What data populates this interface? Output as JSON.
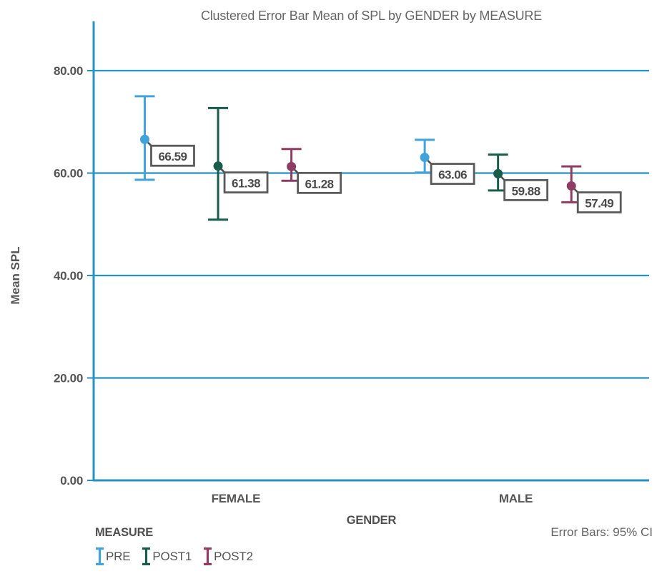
{
  "chart_data": {
    "type": "errorbar",
    "title": "Clustered Error Bar Mean of SPL by GENDER by MEASURE",
    "xlabel": "GENDER",
    "ylabel": "Mean SPL",
    "legend_title": "MEASURE",
    "footnote": "Error Bars: 95% CI",
    "error_bars": "95% CI",
    "grid": true,
    "legend_position": "bottom-left",
    "ylim": [
      0,
      89.6
    ],
    "yticks": [
      {
        "value": 0,
        "label": "0.00"
      },
      {
        "value": 20,
        "label": "20.00"
      },
      {
        "value": 40,
        "label": "40.00"
      },
      {
        "value": 60,
        "label": "60.00"
      },
      {
        "value": 80,
        "label": "80.00"
      }
    ],
    "categories": [
      "FEMALE",
      "MALE"
    ],
    "series": [
      {
        "name": "PRE",
        "color": "#41a3da",
        "points": [
          {
            "category": "FEMALE",
            "mean": 66.59,
            "label": "66.59",
            "ci_low": 58.7,
            "ci_high": 75.0
          },
          {
            "category": "MALE",
            "mean": 63.06,
            "label": "63.06",
            "ci_low": 60.1,
            "ci_high": 66.5
          }
        ]
      },
      {
        "name": "POST1",
        "color": "#1a5c4c",
        "points": [
          {
            "category": "FEMALE",
            "mean": 61.38,
            "label": "61.38",
            "ci_low": 50.9,
            "ci_high": 72.7
          },
          {
            "category": "MALE",
            "mean": 59.88,
            "label": "59.88",
            "ci_low": 56.6,
            "ci_high": 63.6
          }
        ]
      },
      {
        "name": "POST2",
        "color": "#8e3c61",
        "points": [
          {
            "category": "FEMALE",
            "mean": 61.28,
            "label": "61.28",
            "ci_low": 58.5,
            "ci_high": 64.7
          },
          {
            "category": "MALE",
            "mean": 57.49,
            "label": "57.49",
            "ci_low": 54.3,
            "ci_high": 61.3
          }
        ]
      }
    ],
    "colors": {
      "axis": "#2492c2",
      "grid": "#2492c2",
      "tick_text": "#555555",
      "category_text": "#555555",
      "title_text": "#666666",
      "label_box_border": "#5a5a5a",
      "label_box_fill": "#ffffff",
      "label_text": "#4a4a4a",
      "leader": "#4d4d4d"
    }
  }
}
